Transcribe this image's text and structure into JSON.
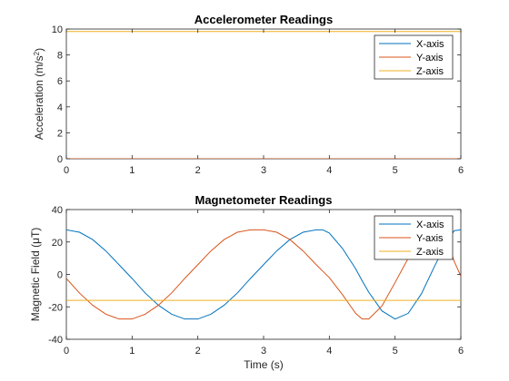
{
  "chart_data": [
    {
      "type": "line",
      "title": "Accelerometer Readings",
      "ylabel_main": "Acceleration (m/s",
      "ylabel_sup": "2",
      "ylabel_end": ")",
      "xlabel": "",
      "xlim": [
        0,
        6
      ],
      "ylim": [
        0,
        10
      ],
      "xticks": [
        "0",
        "1",
        "2",
        "3",
        "4",
        "5",
        "6"
      ],
      "yticks": [
        "0",
        "2",
        "4",
        "6",
        "8",
        "10"
      ],
      "grid": false,
      "legend": "top-right",
      "x": [
        0,
        0.5,
        1,
        1.5,
        2,
        2.5,
        3,
        3.5,
        4,
        4.5,
        5,
        5.5,
        6
      ],
      "series": [
        {
          "name": "X-axis",
          "color": "#0072BD",
          "values": [
            0,
            0,
            0,
            0,
            0,
            0,
            0,
            0,
            0,
            0,
            0,
            0,
            0
          ]
        },
        {
          "name": "Y-axis",
          "color": "#D95319",
          "values": [
            0,
            0,
            0,
            0,
            0,
            0,
            0,
            0,
            0,
            0,
            0,
            0,
            0
          ]
        },
        {
          "name": "Z-axis",
          "color": "#EDB120",
          "values": [
            9.81,
            9.81,
            9.81,
            9.81,
            9.81,
            9.81,
            9.81,
            9.81,
            9.81,
            9.81,
            9.81,
            9.81,
            9.81
          ]
        }
      ]
    },
    {
      "type": "line",
      "title": "Magnetometer Readings",
      "ylabel_main": "Magnetic Field (μT)",
      "xlabel": "Time (s)",
      "xlim": [
        0,
        6
      ],
      "ylim": [
        -40,
        40
      ],
      "xticks": [
        "0",
        "1",
        "2",
        "3",
        "4",
        "5",
        "6"
      ],
      "yticks": [
        "-40",
        "-20",
        "0",
        "20",
        "40"
      ],
      "grid": false,
      "legend": "top-right",
      "x": [
        0,
        0.2,
        0.4,
        0.6,
        0.8,
        1.0,
        1.2,
        1.4,
        1.6,
        1.8,
        2.0,
        2.2,
        2.4,
        2.6,
        2.8,
        3.0,
        3.2,
        3.4,
        3.6,
        3.8,
        3.9,
        4.0,
        4.2,
        4.4,
        4.5,
        4.6,
        4.8,
        5.0,
        5.2,
        5.4,
        5.6,
        5.8,
        5.9,
        6.0
      ],
      "series": [
        {
          "name": "X-axis",
          "color": "#0072BD",
          "values": [
            27.5,
            26.0,
            21.5,
            14.5,
            6.0,
            -2.5,
            -11.5,
            -19.0,
            -24.5,
            -27.5,
            -27.5,
            -24.5,
            -19.0,
            -11.5,
            -2.5,
            6.0,
            14.5,
            21.5,
            26.0,
            27.5,
            27.5,
            25.5,
            16.0,
            3.5,
            -4.0,
            -11.0,
            -22.5,
            -27.5,
            -24.0,
            -12.0,
            5.0,
            21.0,
            27.0,
            27.5
          ]
        },
        {
          "name": "Y-axis",
          "color": "#D95319",
          "values": [
            -2.5,
            -11.5,
            -19.0,
            -24.5,
            -27.5,
            -27.5,
            -24.5,
            -19.0,
            -11.5,
            -2.5,
            6.0,
            14.5,
            21.5,
            26.0,
            27.5,
            27.5,
            26.0,
            21.5,
            14.5,
            6.0,
            2.0,
            -2.0,
            -12.5,
            -24.0,
            -27.5,
            -27.5,
            -19.5,
            -5.0,
            10.0,
            22.5,
            27.5,
            20.0,
            8.0,
            -1.0
          ]
        },
        {
          "name": "Z-axis",
          "color": "#EDB120",
          "values": [
            -16,
            -16,
            -16,
            -16,
            -16,
            -16,
            -16,
            -16,
            -16,
            -16,
            -16,
            -16,
            -16,
            -16,
            -16,
            -16,
            -16,
            -16,
            -16,
            -16,
            -16,
            -16,
            -16,
            -16,
            -16,
            -16,
            -16,
            -16,
            -16,
            -16,
            -16,
            -16,
            -16,
            -16
          ]
        }
      ]
    }
  ]
}
